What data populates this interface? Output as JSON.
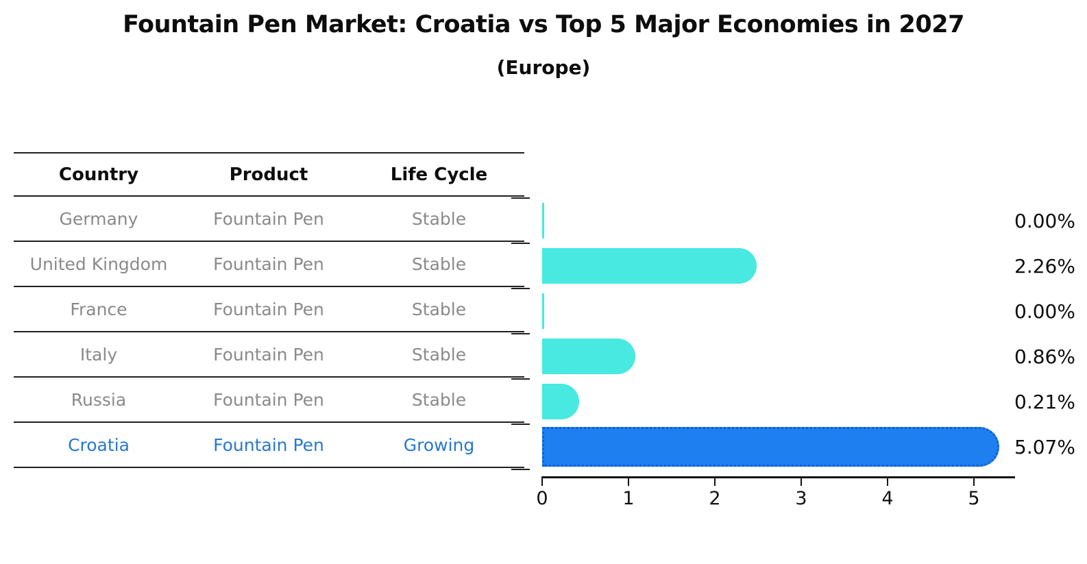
{
  "title": "Fountain Pen Market: Croatia vs Top 5 Major Economies in 2027",
  "subtitle": "(Europe)",
  "table": {
    "headers": [
      "Country",
      "Product",
      "Life Cycle"
    ],
    "rows": [
      {
        "country": "Germany",
        "product": "Fountain Pen",
        "life_cycle": "Stable",
        "highlight": false
      },
      {
        "country": "United Kingdom",
        "product": "Fountain Pen",
        "life_cycle": "Stable",
        "highlight": false
      },
      {
        "country": "France",
        "product": "Fountain Pen",
        "life_cycle": "Stable",
        "highlight": false
      },
      {
        "country": "Italy",
        "product": "Fountain Pen",
        "life_cycle": "Stable",
        "highlight": false
      },
      {
        "country": "Russia",
        "product": "Fountain Pen",
        "life_cycle": "Stable",
        "highlight": false
      },
      {
        "country": "Croatia",
        "product": "Fountain Pen",
        "life_cycle": "Growing",
        "highlight": true
      }
    ]
  },
  "chart_data": {
    "type": "bar",
    "orientation": "horizontal",
    "title": "Fountain Pen Market: Croatia vs Top 5 Major Economies in 2027",
    "subtitle": "(Europe)",
    "categories": [
      "Germany",
      "United Kingdom",
      "France",
      "Italy",
      "Russia",
      "Croatia"
    ],
    "values": [
      0.0,
      2.26,
      0.0,
      0.86,
      0.21,
      5.07
    ],
    "value_labels": [
      "0.00%",
      "2.26%",
      "0.00%",
      "0.86%",
      "0.21%",
      "5.07%"
    ],
    "xlim": [
      0,
      5.4
    ],
    "xticks": [
      0,
      1,
      2,
      3,
      4,
      5
    ],
    "grid": false,
    "legend": "none",
    "highlight_index": 5,
    "bar_color": "#48e9e0",
    "highlight_color": "#1e80f0",
    "highlight_border_color": "#0d5fd6"
  },
  "colors": {
    "background": "#ffffff",
    "text": "#0d0d0d",
    "muted_text": "#8a8a8a",
    "highlight_text": "#2878d0",
    "axis": "#111111"
  }
}
